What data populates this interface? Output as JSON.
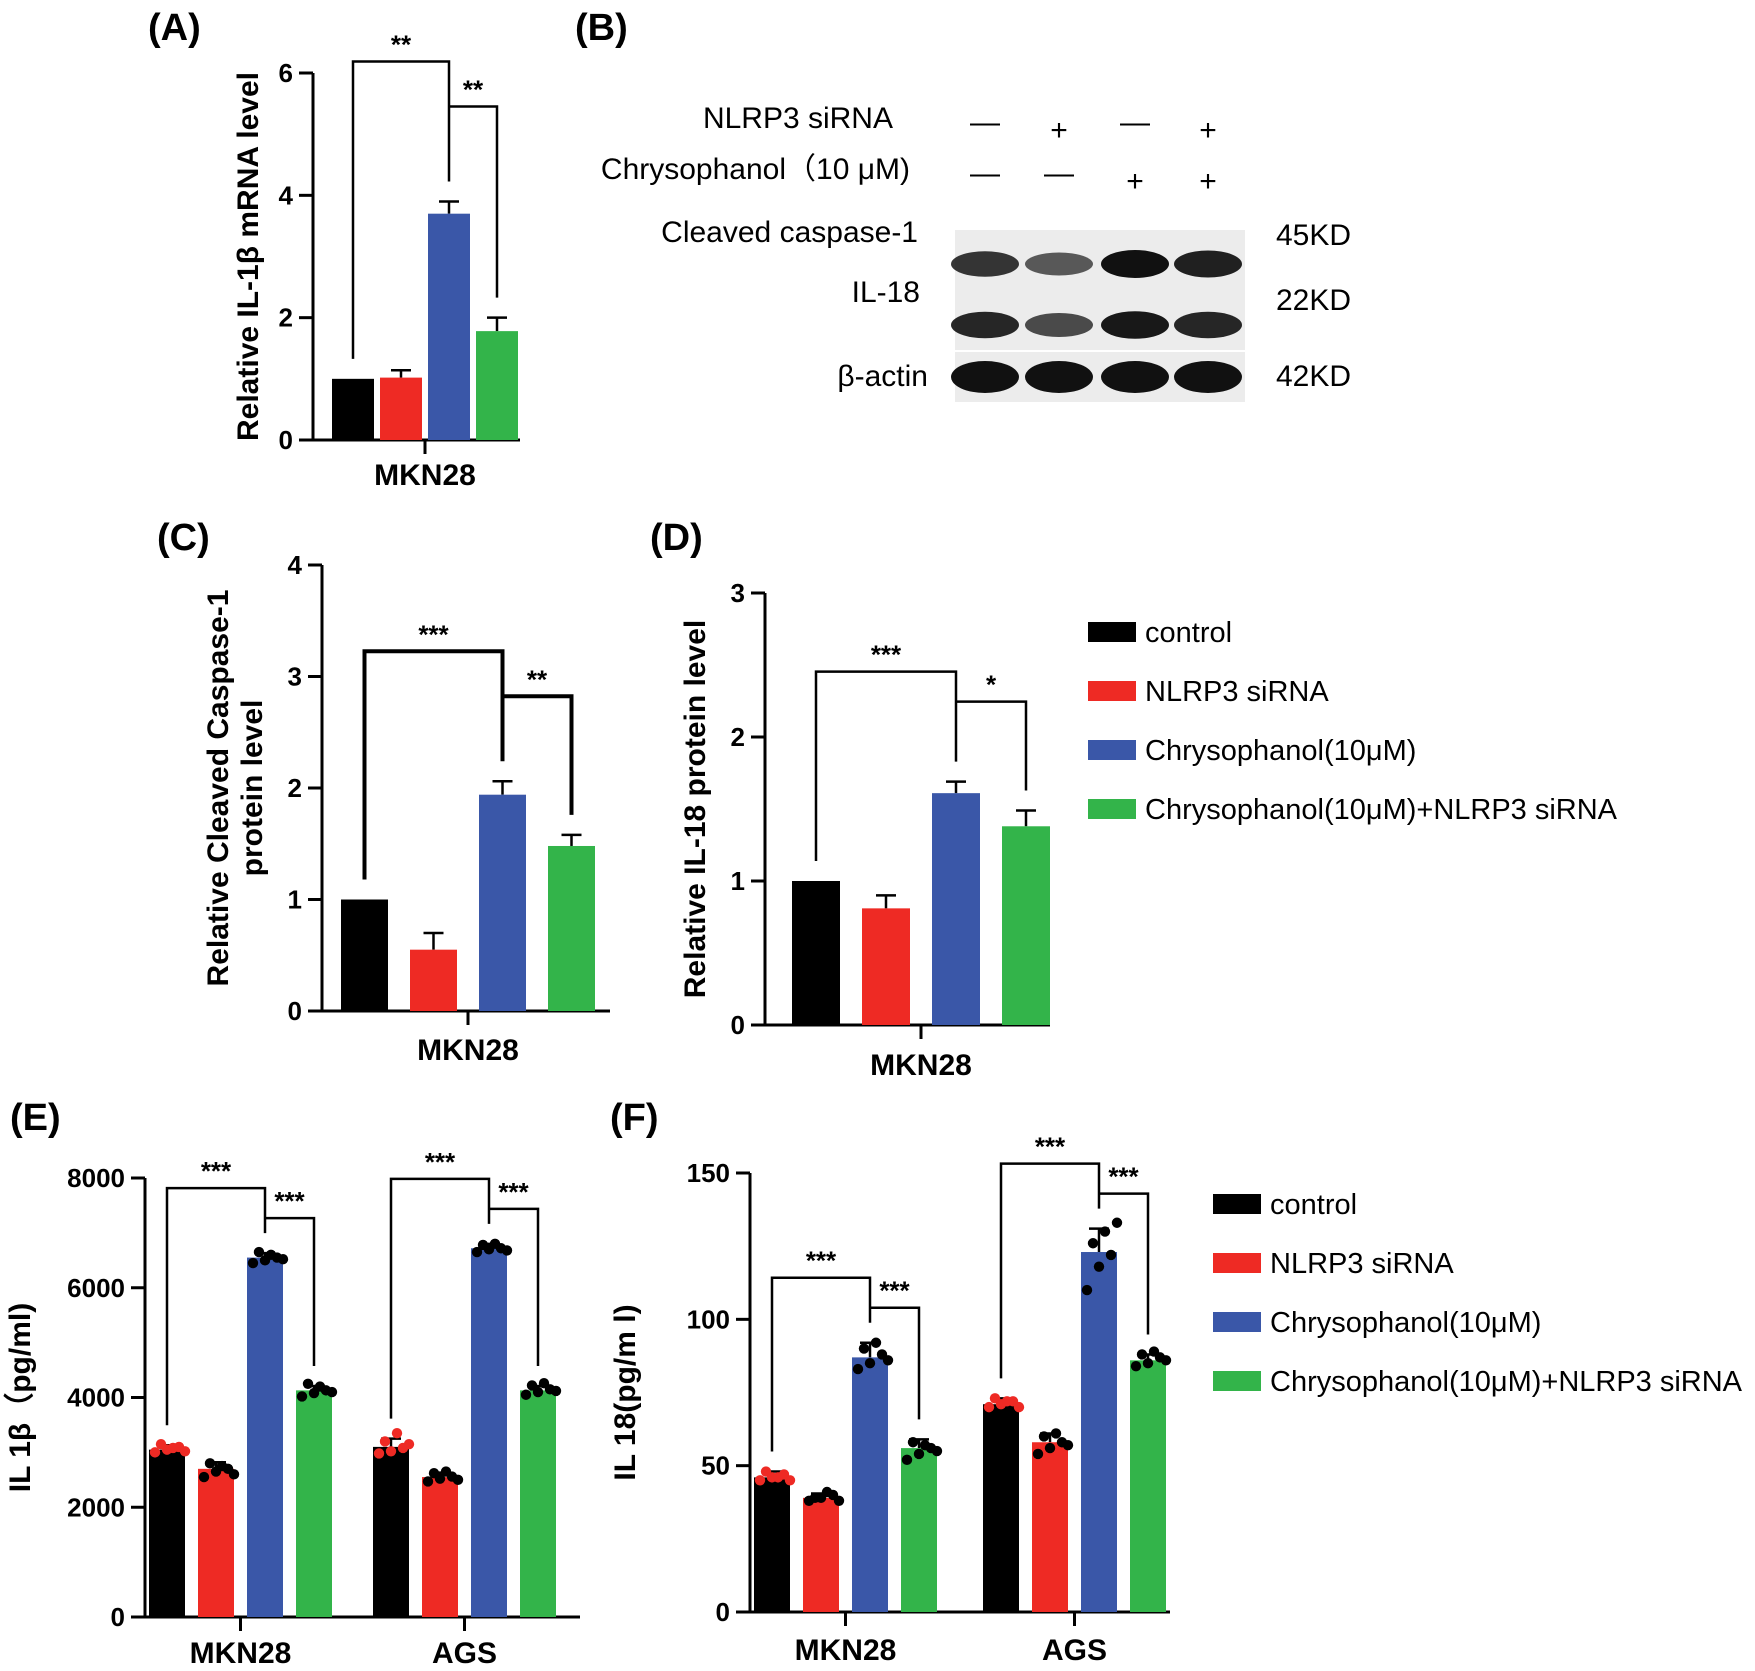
{
  "colors": {
    "control": "#000000",
    "nlrp3_sirna": "#ee2a24",
    "chrysophanol": "#3a57a8",
    "combo": "#33b44a"
  },
  "legend": {
    "items": [
      "control",
      "NLRP3 siRNA",
      "Chrysophanol(10μM)",
      "Chrysophanol(10μM)+NLRP3 siRNA"
    ]
  },
  "chart_data": [
    {
      "panel": "(A)",
      "type": "bar",
      "title": "",
      "ylabel": "Relative IL-1β mRNA level",
      "xlabel": "",
      "ylim": [
        0,
        6
      ],
      "yticks": [
        "0",
        "2",
        "4",
        "6"
      ],
      "categories": [
        "MKN28"
      ],
      "series": [
        {
          "name": "control",
          "values": [
            1.0
          ],
          "err": [
            0
          ]
        },
        {
          "name": "NLRP3 siRNA",
          "values": [
            1.02
          ],
          "err": [
            0.12
          ]
        },
        {
          "name": "Chrysophanol(10μM)",
          "values": [
            3.7
          ],
          "err": [
            0.2
          ]
        },
        {
          "name": "Chrysophanol(10μM)+NLRP3 siRNA",
          "values": [
            1.78
          ],
          "err": [
            0.22
          ]
        }
      ],
      "significance": [
        {
          "group": 0,
          "from": 0,
          "to": 2,
          "label": "**"
        },
        {
          "group": 0,
          "from": 2,
          "to": 3,
          "label": "**"
        }
      ]
    },
    {
      "panel": "(C)",
      "type": "bar",
      "title": "",
      "ylabel": "Relative Cleaved Caspase-1 protein level",
      "xlabel": "",
      "ylim": [
        0,
        4
      ],
      "yticks": [
        "0",
        "1",
        "2",
        "3",
        "4"
      ],
      "categories": [
        "MKN28"
      ],
      "series": [
        {
          "name": "control",
          "values": [
            1.0
          ],
          "err": [
            0
          ]
        },
        {
          "name": "NLRP3 siRNA",
          "values": [
            0.55
          ],
          "err": [
            0.15
          ]
        },
        {
          "name": "Chrysophanol(10μM)",
          "values": [
            1.94
          ],
          "err": [
            0.12
          ]
        },
        {
          "name": "Chrysophanol(10μM)+NLRP3 siRNA",
          "values": [
            1.48
          ],
          "err": [
            0.1
          ]
        }
      ],
      "significance": [
        {
          "group": 0,
          "from": 0,
          "to": 2,
          "label": "***"
        },
        {
          "group": 0,
          "from": 2,
          "to": 3,
          "label": "**"
        }
      ]
    },
    {
      "panel": "(D)",
      "type": "bar",
      "title": "",
      "ylabel": "Relative IL-18 protein level",
      "xlabel": "",
      "ylim": [
        0,
        3
      ],
      "yticks": [
        "0",
        "1",
        "2",
        "3"
      ],
      "categories": [
        "MKN28"
      ],
      "series": [
        {
          "name": "control",
          "values": [
            1.0
          ],
          "err": [
            0
          ]
        },
        {
          "name": "NLRP3 siRNA",
          "values": [
            0.81
          ],
          "err": [
            0.09
          ]
        },
        {
          "name": "Chrysophanol(10μM)",
          "values": [
            1.61
          ],
          "err": [
            0.08
          ]
        },
        {
          "name": "Chrysophanol(10μM)+NLRP3 siRNA",
          "values": [
            1.38
          ],
          "err": [
            0.11
          ]
        }
      ],
      "significance": [
        {
          "group": 0,
          "from": 0,
          "to": 2,
          "label": "***"
        },
        {
          "group": 0,
          "from": 2,
          "to": 3,
          "label": "*"
        }
      ]
    },
    {
      "panel": "(E)",
      "type": "bar",
      "title": "",
      "ylabel": "IL 1β（pg/ml)",
      "xlabel": "",
      "ylim": [
        0,
        8000
      ],
      "yticks": [
        "0",
        "2000",
        "4000",
        "6000",
        "8000"
      ],
      "categories": [
        "MKN28",
        "AGS"
      ],
      "series": [
        {
          "name": "control",
          "values": [
            3050,
            3100
          ],
          "err": [
            80,
            150
          ]
        },
        {
          "name": "NLRP3 siRNA",
          "values": [
            2700,
            2550
          ],
          "err": [
            120,
            80
          ]
        },
        {
          "name": "Chrysophanol(10μM)",
          "values": [
            6550,
            6720
          ],
          "err": [
            80,
            80
          ]
        },
        {
          "name": "Chrysophanol(10μM)+NLRP3 siRNA",
          "values": [
            4130,
            4130
          ],
          "err": [
            80,
            80
          ]
        }
      ],
      "points": [
        [
          [
            3000,
            3050,
            3100,
            3150,
            3080,
            3020
          ],
          [
            2550,
            2650,
            2700,
            2800,
            2750,
            2600
          ],
          [
            6450,
            6500,
            6550,
            6650,
            6600,
            6520
          ],
          [
            4020,
            4080,
            4130,
            4250,
            4200,
            4100
          ]
        ],
        [
          [
            2980,
            3020,
            3080,
            3200,
            3350,
            3150
          ],
          [
            2470,
            2520,
            2560,
            2620,
            2650,
            2500
          ],
          [
            6650,
            6700,
            6720,
            6780,
            6800,
            6680
          ],
          [
            4050,
            4100,
            4150,
            4220,
            4260,
            4120
          ]
        ]
      ],
      "significance": [
        {
          "group": 0,
          "from": 0,
          "to": 2,
          "label": "***"
        },
        {
          "group": 0,
          "from": 2,
          "to": 3,
          "label": "***"
        },
        {
          "group": 1,
          "from": 0,
          "to": 2,
          "label": "***"
        },
        {
          "group": 1,
          "from": 2,
          "to": 3,
          "label": "***"
        }
      ]
    },
    {
      "panel": "(F)",
      "type": "bar",
      "title": "",
      "ylabel": "IL 18(pg/m l)",
      "xlabel": "",
      "ylim": [
        0,
        150
      ],
      "yticks": [
        "0",
        "50",
        "100",
        "150"
      ],
      "categories": [
        "MKN28",
        "AGS"
      ],
      "series": [
        {
          "name": "control",
          "values": [
            46,
            71
          ],
          "err": [
            2,
            2
          ]
        },
        {
          "name": "NLRP3 siRNA",
          "values": [
            39,
            58
          ],
          "err": [
            1.5,
            3
          ]
        },
        {
          "name": "Chrysophanol(10μM)",
          "values": [
            87,
            123
          ],
          "err": [
            5,
            8
          ]
        },
        {
          "name": "Chrysophanol(10μM)+NLRP3 siRNA",
          "values": [
            56,
            86
          ],
          "err": [
            3,
            2
          ]
        }
      ],
      "points": [
        [
          [
            45,
            46,
            47,
            48,
            46,
            45
          ],
          [
            38,
            39,
            40,
            39,
            41,
            38
          ],
          [
            83,
            85,
            88,
            90,
            92,
            86
          ],
          [
            52,
            54,
            56,
            58,
            57,
            55
          ]
        ],
        [
          [
            70,
            71,
            72,
            73,
            72,
            70
          ],
          [
            54,
            56,
            58,
            60,
            61,
            57
          ],
          [
            110,
            118,
            122,
            126,
            130,
            133
          ],
          [
            84,
            85,
            87,
            88,
            89,
            86
          ]
        ]
      ],
      "significance": [
        {
          "group": 0,
          "from": 0,
          "to": 2,
          "label": "***"
        },
        {
          "group": 0,
          "from": 2,
          "to": 3,
          "label": "***"
        },
        {
          "group": 1,
          "from": 0,
          "to": 2,
          "label": "***"
        },
        {
          "group": 1,
          "from": 2,
          "to": 3,
          "label": "***"
        }
      ]
    }
  ],
  "western_blot": {
    "panel": "(B)",
    "treatment_rows": [
      {
        "label": "NLRP3 siRNA",
        "signs": [
          "—",
          "+",
          "—",
          "+"
        ]
      },
      {
        "label": "Chrysophanol（10 μM)",
        "signs": [
          "—",
          "—",
          "+",
          "+"
        ]
      }
    ],
    "bands": [
      {
        "protein": "Cleaved caspase-1",
        "size": "45KD",
        "intensity": [
          0.75,
          0.5,
          1.0,
          0.9
        ]
      },
      {
        "protein": "IL-18",
        "size": "22KD",
        "intensity": [
          0.85,
          0.6,
          0.95,
          0.85
        ]
      },
      {
        "protein": "β-actin",
        "size": "42KD",
        "intensity": [
          1.0,
          1.0,
          1.0,
          1.0
        ]
      }
    ]
  }
}
